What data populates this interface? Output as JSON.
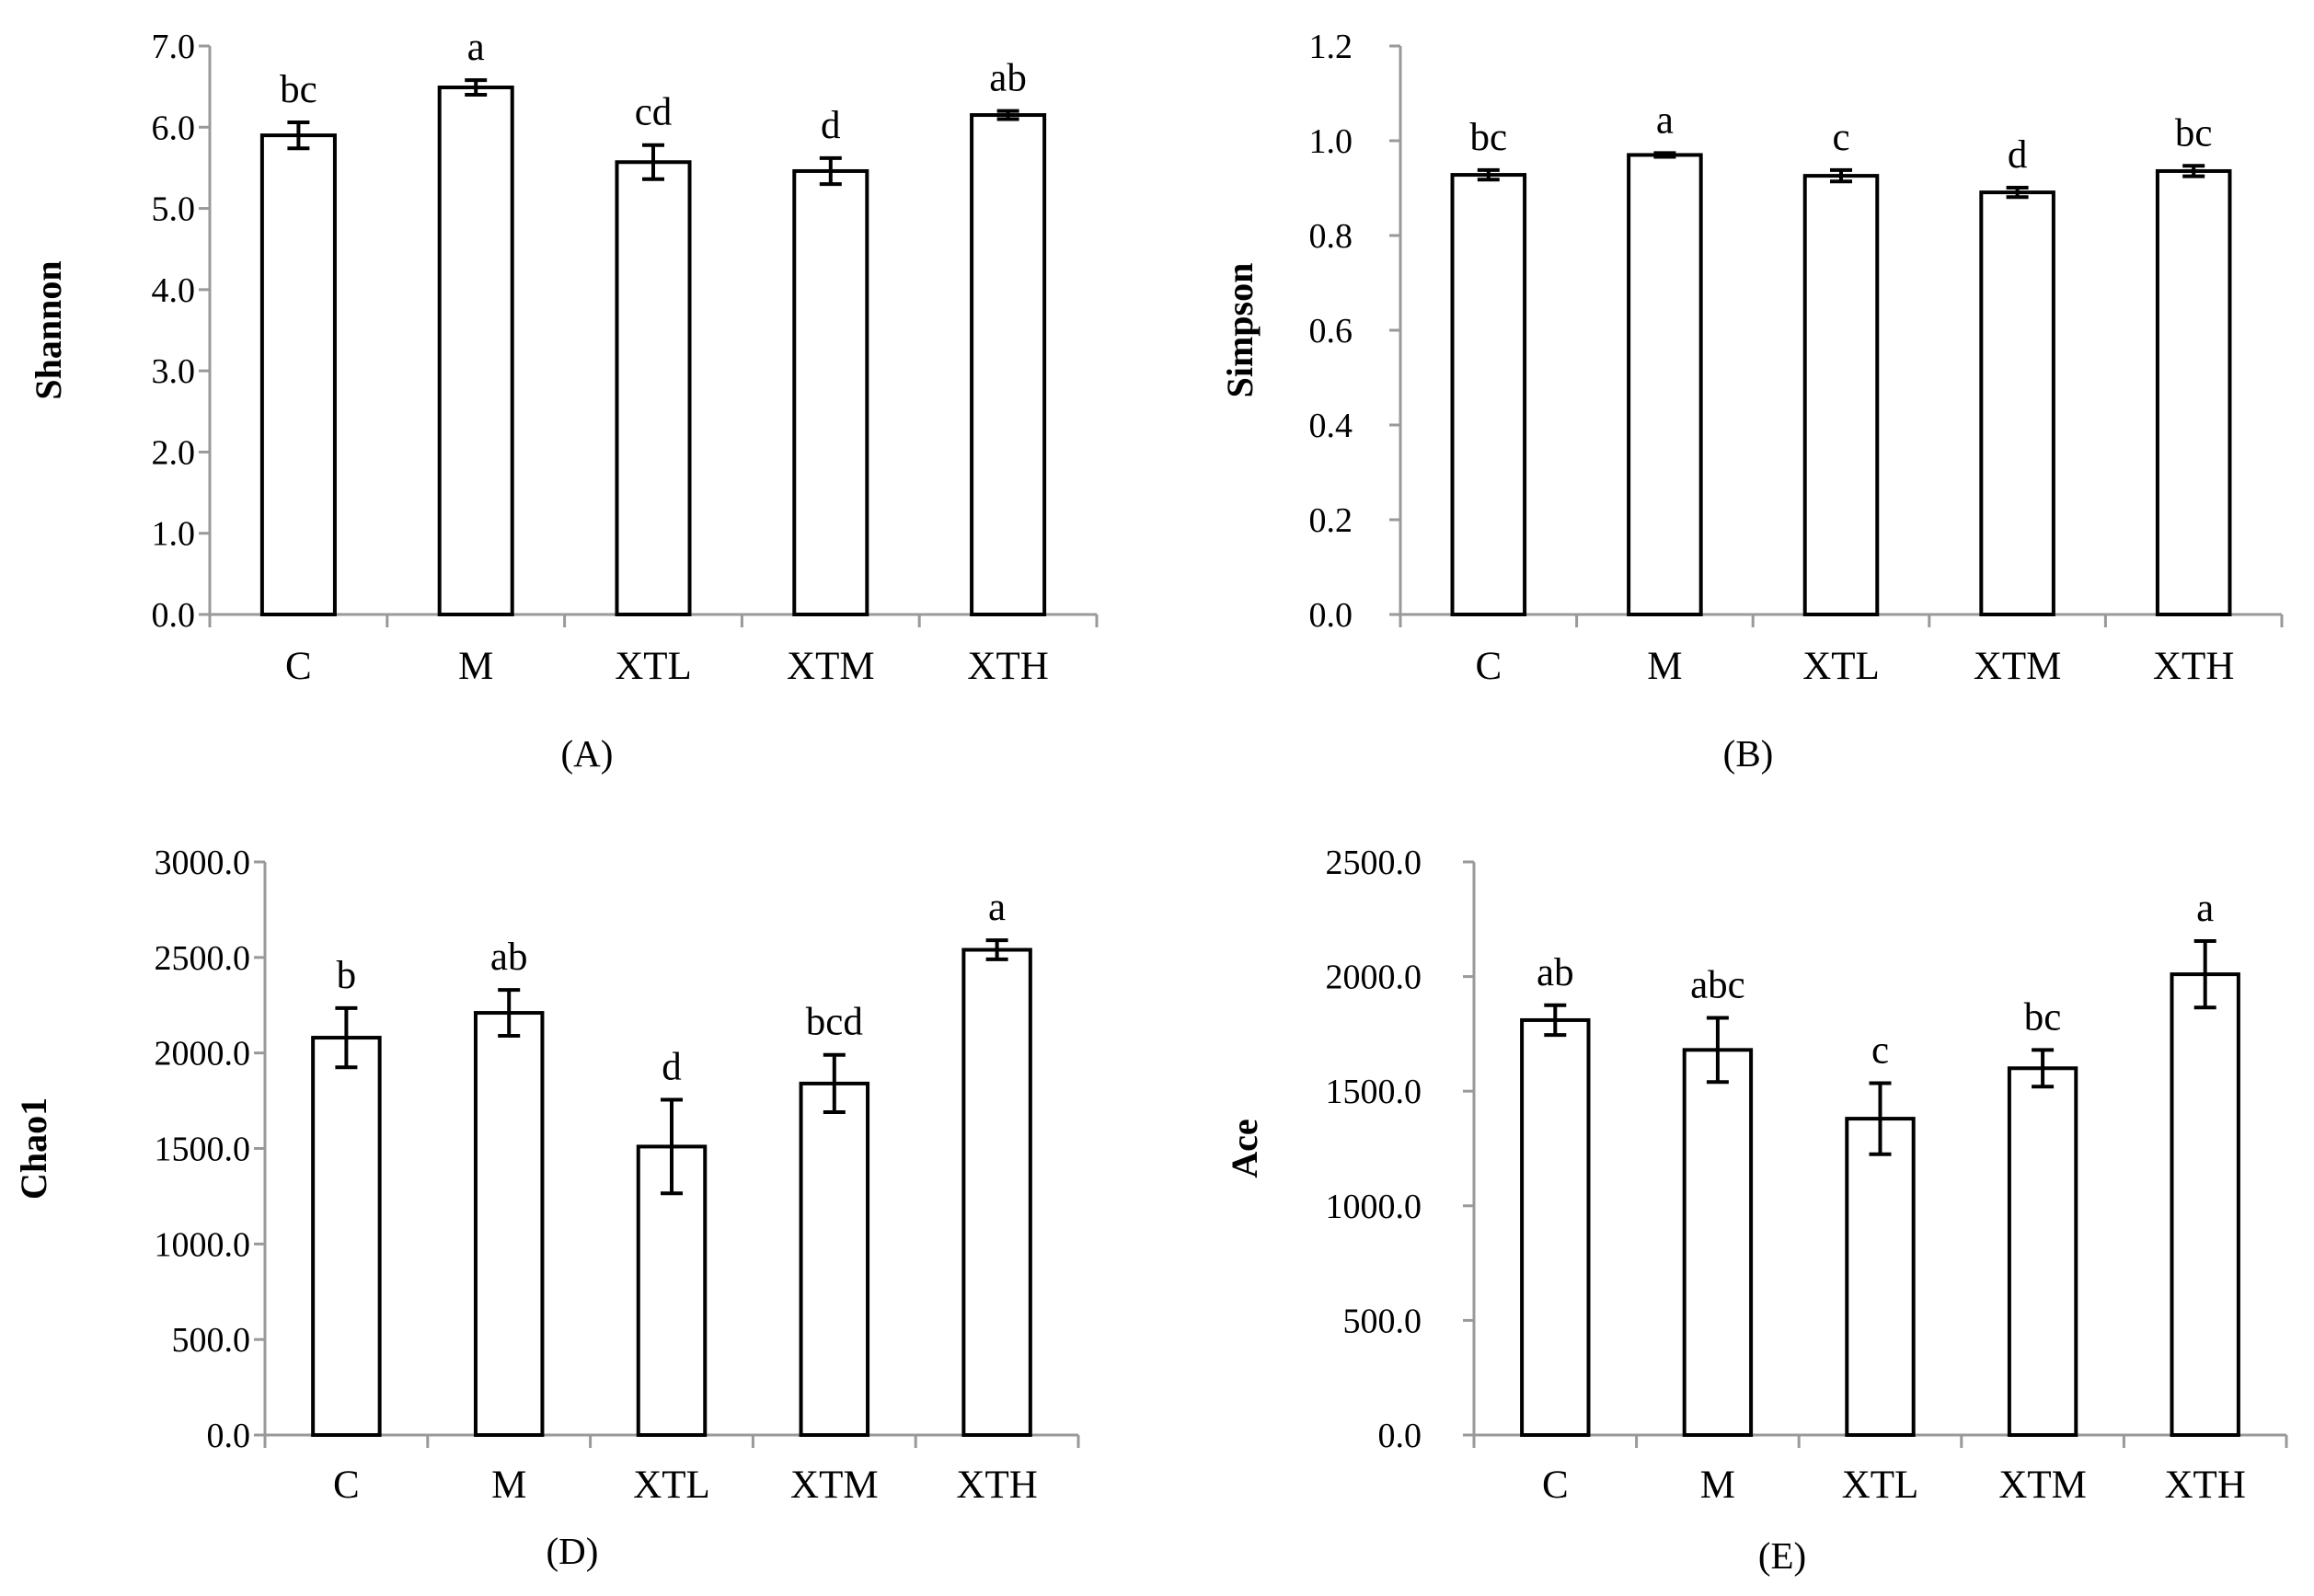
{
  "chart_data": [
    {
      "type": "bar",
      "panel_label": "(A)",
      "ylabel": "Shannon",
      "xlabel": "",
      "categories": [
        "C",
        "M",
        "XTL",
        "XTM",
        "XTH"
      ],
      "values": [
        5.9,
        6.49,
        5.57,
        5.46,
        6.15
      ],
      "errors": [
        0.16,
        0.09,
        0.21,
        0.16,
        0.05
      ],
      "letters": [
        "bc",
        "a",
        "cd",
        "d",
        "ab"
      ],
      "ylim": [
        0,
        7
      ],
      "ticks": [
        "0.0",
        "1.0",
        "2.0",
        "3.0",
        "4.0",
        "5.0",
        "6.0",
        "7.0"
      ],
      "grid": false
    },
    {
      "type": "bar",
      "panel_label": "(B)",
      "ylabel": "Simpson",
      "xlabel": "",
      "categories": [
        "C",
        "M",
        "XTL",
        "XTM",
        "XTH"
      ],
      "values": [
        0.928,
        0.97,
        0.926,
        0.891,
        0.936
      ],
      "errors": [
        0.01,
        0.004,
        0.012,
        0.01,
        0.011
      ],
      "letters": [
        "bc",
        "a",
        "c",
        "d",
        "bc"
      ],
      "ylim": [
        0,
        1.2
      ],
      "ticks": [
        "0.0",
        "0.2",
        "0.4",
        "0.6",
        "0.8",
        "1.0",
        "1.2"
      ],
      "grid": false
    },
    {
      "type": "bar",
      "panel_label": "(D)",
      "ylabel": "Chao1",
      "xlabel": "",
      "categories": [
        "C",
        "M",
        "XTL",
        "XTM",
        "XTH"
      ],
      "values": [
        2080,
        2210,
        1510,
        1840,
        2540
      ],
      "errors": [
        155,
        120,
        245,
        150,
        50
      ],
      "letters": [
        "b",
        "ab",
        "d",
        "bcd",
        "a"
      ],
      "ylim": [
        0,
        3000
      ],
      "ticks": [
        "0.0",
        "500.0",
        "1000.0",
        "1500.0",
        "2000.0",
        "2500.0",
        "3000.0"
      ],
      "grid": false
    },
    {
      "type": "bar",
      "panel_label": "(E)",
      "ylabel": "Ace",
      "xlabel": "",
      "categories": [
        "C",
        "M",
        "XTL",
        "XTM",
        "XTH"
      ],
      "values": [
        1810,
        1680,
        1380,
        1600,
        2010
      ],
      "errors": [
        65,
        140,
        155,
        80,
        145
      ],
      "letters": [
        "ab",
        "abc",
        "c",
        "bc",
        "a"
      ],
      "ylim": [
        0,
        2500
      ],
      "ticks": [
        "0.0",
        "500.0",
        "1000.0",
        "1500.0",
        "2000.0",
        "2500.0"
      ],
      "grid": false
    }
  ]
}
